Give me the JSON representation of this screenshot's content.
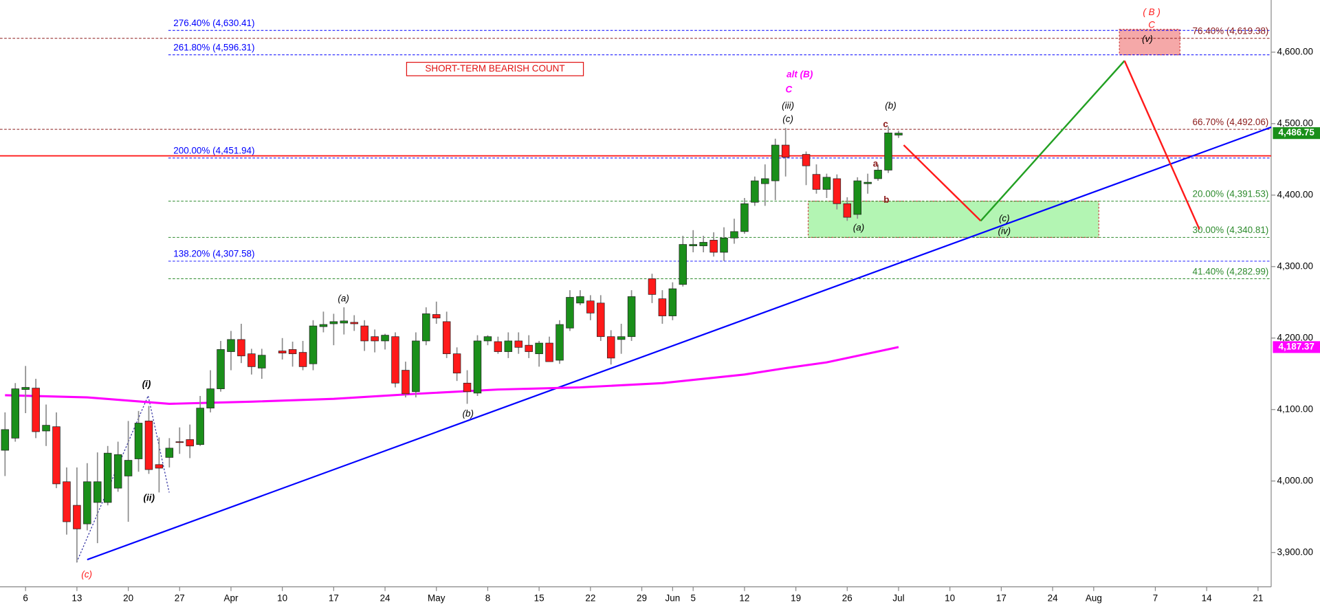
{
  "chart_data": {
    "type": "candlestick",
    "up_color": "#1a8f1a",
    "down_color": "#ff1a1a",
    "wick_color": "#8c8c8c",
    "xlim": [
      -0.49,
      123.28
    ],
    "ylim": [
      3852,
      4673
    ],
    "xticks": [
      {
        "value": 2,
        "label": "6"
      },
      {
        "value": 7,
        "label": "13"
      },
      {
        "value": 12,
        "label": "20"
      },
      {
        "value": 17,
        "label": "27"
      },
      {
        "value": 22,
        "label": "Apr"
      },
      {
        "value": 27,
        "label": "10"
      },
      {
        "value": 32,
        "label": "17"
      },
      {
        "value": 37,
        "label": "24"
      },
      {
        "value": 42,
        "label": "May"
      },
      {
        "value": 47,
        "label": "8"
      },
      {
        "value": 52,
        "label": "15"
      },
      {
        "value": 57,
        "label": "22"
      },
      {
        "value": 62,
        "label": "29"
      },
      {
        "value": 65,
        "label": "Jun"
      },
      {
        "value": 67,
        "label": "5"
      },
      {
        "value": 72,
        "label": "12"
      },
      {
        "value": 77,
        "label": "19"
      },
      {
        "value": 82,
        "label": "26"
      },
      {
        "value": 87,
        "label": "Jul"
      },
      {
        "value": 92,
        "label": "10"
      },
      {
        "value": 97,
        "label": "17"
      },
      {
        "value": 102,
        "label": "24"
      },
      {
        "value": 106,
        "label": "Aug"
      },
      {
        "value": 112,
        "label": "7"
      },
      {
        "value": 117,
        "label": "14"
      },
      {
        "value": 122,
        "label": "21"
      }
    ],
    "yticks": [
      {
        "value": 3900,
        "label": "3,900.00"
      },
      {
        "value": 4000,
        "label": "4,000.00"
      },
      {
        "value": 4100,
        "label": "4,100.00"
      },
      {
        "value": 4200,
        "label": "4,200.00"
      },
      {
        "value": 4300,
        "label": "4,300.00"
      },
      {
        "value": 4400,
        "label": "4,400.00"
      },
      {
        "value": 4500,
        "label": "4,500.00"
      },
      {
        "value": 4600,
        "label": "4,600.00"
      }
    ],
    "x": [
      0,
      1,
      2,
      3,
      4,
      5,
      6,
      7,
      8,
      9,
      10,
      11,
      12,
      13,
      14,
      15,
      16,
      17,
      18,
      19,
      20,
      21,
      22,
      23,
      24,
      25,
      27,
      28,
      29,
      30,
      31,
      32,
      33,
      34,
      35,
      36,
      37,
      38,
      39,
      40,
      41,
      42,
      43,
      44,
      45,
      46,
      47,
      48,
      49,
      50,
      51,
      52,
      53,
      54,
      55,
      56,
      57,
      58,
      59,
      60,
      61,
      63,
      64,
      65,
      66,
      67,
      68,
      69,
      70,
      71,
      72,
      73,
      74,
      75,
      76,
      78,
      79,
      80,
      81,
      82,
      83,
      84,
      85,
      86,
      87
    ],
    "open": [
      4043,
      4060,
      4128,
      4130,
      4070,
      4076,
      3999,
      3966,
      3940,
      3970,
      3970,
      3990,
      4007,
      4031,
      4084,
      4023,
      4033,
      4055,
      4058,
      4051,
      4102,
      4129,
      4181,
      4198,
      4178,
      4158,
      4182,
      4184,
      4180,
      4164,
      4216,
      4220,
      4221,
      4222,
      4217,
      4202,
      4196,
      4202,
      4155,
      4125,
      4196,
      4233,
      4223,
      4178,
      4137,
      4123,
      4196,
      4195,
      4181,
      4196,
      4190,
      4178,
      4193,
      4169,
      4214,
      4249,
      4252,
      4249,
      4202,
      4198,
      4202,
      4283,
      4255,
      4231,
      4275,
      4329,
      4329,
      4337,
      4320,
      4340,
      4349,
      4390,
      4416,
      4420,
      4470,
      4457,
      4429,
      4408,
      4423,
      4388,
      4373,
      4416,
      4423,
      4435,
      4484
    ],
    "high": [
      4096,
      4137,
      4161,
      4143,
      4107,
      4096,
      4019,
      4019,
      4025,
      4040,
      4049,
      4055,
      4084,
      4098,
      4105,
      4061,
      4060,
      4075,
      4079,
      4119,
      4155,
      4196,
      4210,
      4220,
      4185,
      4185,
      4200,
      4195,
      4196,
      4225,
      4237,
      4234,
      4243,
      4232,
      4225,
      4212,
      4206,
      4208,
      4167,
      4208,
      4243,
      4251,
      4237,
      4187,
      4155,
      4204,
      4204,
      4202,
      4208,
      4208,
      4204,
      4196,
      4202,
      4225,
      4267,
      4267,
      4260,
      4260,
      4211,
      4220,
      4267,
      4290,
      4267,
      4278,
      4343,
      4351,
      4343,
      4348,
      4355,
      4367,
      4396,
      4426,
      4443,
      4479,
      4494,
      4461,
      4443,
      4430,
      4429,
      4397,
      4425,
      4430,
      4443,
      4496,
      4490
    ],
    "low": [
      4007,
      4055,
      4095,
      4060,
      4049,
      3990,
      3925,
      3886,
      3931,
      3913,
      3966,
      3985,
      3943,
      4013,
      4010,
      3984,
      4019,
      4038,
      4032,
      4049,
      4096,
      4125,
      4155,
      4165,
      4149,
      4143,
      4170,
      4160,
      4155,
      4155,
      4208,
      4190,
      4205,
      4210,
      4182,
      4180,
      4184,
      4131,
      4117,
      4117,
      4190,
      4220,
      4172,
      4140,
      4108,
      4119,
      4190,
      4178,
      4172,
      4178,
      4172,
      4160,
      4167,
      4164,
      4210,
      4246,
      4225,
      4196,
      4163,
      4178,
      4196,
      4249,
      4220,
      4225,
      4272,
      4320,
      4320,
      4314,
      4308,
      4332,
      4346,
      4385,
      4385,
      4393,
      4426,
      4414,
      4402,
      4396,
      4380,
      4364,
      4367,
      4402,
      4420,
      4431,
      4480
    ],
    "close": [
      4072,
      4129,
      4131,
      4069,
      4078,
      3996,
      3943,
      3933,
      3999,
      3999,
      4039,
      4037,
      4029,
      4081,
      4016,
      4018,
      4046,
      4054,
      4049,
      4102,
      4129,
      4184,
      4198,
      4175,
      4160,
      4176,
      4179,
      4178,
      4160,
      4217,
      4219,
      4223,
      4224,
      4220,
      4196,
      4196,
      4204,
      4137,
      4122,
      4196,
      4234,
      4228,
      4178,
      4151,
      4125,
      4196,
      4202,
      4181,
      4196,
      4187,
      4181,
      4193,
      4167,
      4219,
      4257,
      4258,
      4235,
      4202,
      4172,
      4202,
      4258,
      4261,
      4231,
      4269,
      4331,
      4331,
      4334,
      4320,
      4340,
      4349,
      4388,
      4420,
      4423,
      4470,
      4453,
      4441,
      4408,
      4425,
      4388,
      4369,
      4420,
      4418,
      4435,
      4487,
      4486.75
    ],
    "moving_average": {
      "color": "#ff00ff",
      "x": [
        0,
        8,
        16,
        24,
        32,
        40,
        48,
        56,
        64,
        72,
        76,
        80,
        87
      ],
      "values": [
        4120,
        4117,
        4108,
        4111,
        4115,
        4122,
        4128,
        4131,
        4137,
        4149,
        4158,
        4166,
        4187.37
      ]
    },
    "last_labels": [
      {
        "value": 4486.75,
        "label": "4,486.75",
        "color": "#1a8f1a"
      },
      {
        "value": 4187.37,
        "label": "4,187.37",
        "color": "#ff00ff"
      }
    ],
    "levels": [
      {
        "label": "276.40% (4,630.41)",
        "value": 4630.41,
        "color": "#0000ff"
      },
      {
        "label": "261.80% (4,596.31)",
        "value": 4596.31,
        "color": "#0000ff"
      },
      {
        "label": "200.00% (4,451.94)",
        "value": 4451.94,
        "color": "#0000ff"
      },
      {
        "label": "138.20% (4,307.58)",
        "value": 4307.58,
        "color": "#0000ff"
      },
      {
        "label": "66.70% (4,492.06)",
        "value": 4492.06,
        "color": "#8b1a1a"
      },
      {
        "label": "76.40% (4,619.38)",
        "value": 4619.38,
        "color": "#8b1a1a"
      },
      {
        "label": "20.00% (4,391.53)",
        "value": 4391.53,
        "color": "#2e8b2e"
      },
      {
        "label": "30.00% (4,340.81)",
        "value": 4340.81,
        "color": "#2e8b2e"
      },
      {
        "label": "41.40% (4,282.99)",
        "value": 4282.99,
        "color": "#2e8b2e"
      }
    ],
    "support_line": {
      "value": 4455,
      "color": "#ff1a1a"
    },
    "trendline": {
      "color": "#0000ff",
      "x": [
        8,
        123.28
      ],
      "values": [
        3890,
        4495
      ]
    },
    "zones": [
      {
        "color": "#b3f5b3",
        "border": "#d04040",
        "x": [
          78.2,
          106.5
        ],
        "values": [
          4340.81,
          4391.53
        ]
      },
      {
        "color": "#f5a8a8",
        "border": "#d04040",
        "x": [
          108.5,
          114.4
        ],
        "values": [
          4596.31,
          4632
        ]
      }
    ],
    "projections": [
      {
        "color": "#ff1a1a",
        "x": [
          87.5,
          95
        ],
        "values": [
          4470,
          4364
        ]
      },
      {
        "color": "#22a022",
        "x": [
          95,
          109
        ],
        "values": [
          4364,
          4588
        ]
      },
      {
        "color": "#ff1a1a",
        "x": [
          109,
          116.3
        ],
        "values": [
          4588,
          4352
        ]
      }
    ],
    "annotations": [
      {
        "text": "SHORT-TERM BEARISH COUNT",
        "color": "#e01010"
      },
      {
        "text": "alt (B)",
        "color": "#ff00ff"
      },
      {
        "text": "C",
        "color": "#ff00ff"
      },
      {
        "text": "(iii)",
        "color": "#000000"
      },
      {
        "text": "(c)",
        "color": "#000000"
      },
      {
        "text": "(b)",
        "color": "#000000"
      },
      {
        "text": "c",
        "color": "#8b1a1a"
      },
      {
        "text": "a",
        "color": "#8b1a1a"
      },
      {
        "text": "b",
        "color": "#8b1a1a"
      },
      {
        "text": "(a)",
        "color": "#000000"
      },
      {
        "text": "(c)",
        "color": "#000000"
      },
      {
        "text": "(iv)",
        "color": "#000000"
      },
      {
        "text": "( B )",
        "color": "#ff1a1a"
      },
      {
        "text": "C",
        "color": "#ff1a1a"
      },
      {
        "text": "(v)",
        "color": "#000000"
      },
      {
        "text": "(a)",
        "color": "#000000"
      },
      {
        "text": "(b)",
        "color": "#000000"
      },
      {
        "text": "(i)",
        "color": "#000000"
      },
      {
        "text": "(ii)",
        "color": "#000000"
      },
      {
        "text": "(c)",
        "color": "#ff1a1a"
      }
    ]
  }
}
